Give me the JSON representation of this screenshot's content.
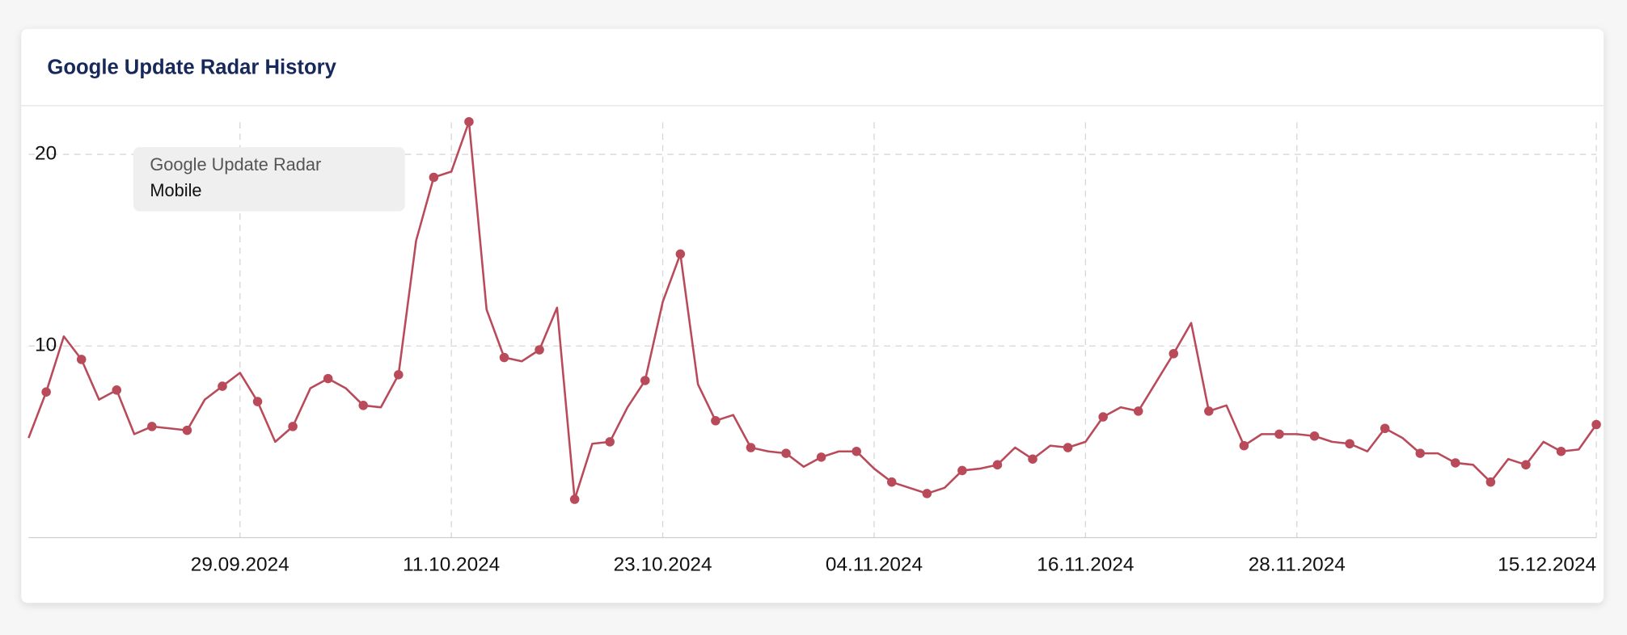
{
  "header": {
    "title": "Google Update Radar History"
  },
  "chart_data": {
    "type": "line",
    "legend_title": "Google Update Radar",
    "categories": [
      null,
      null,
      null,
      null,
      null,
      null,
      null,
      null,
      null,
      null,
      null,
      null,
      "29.09.2024",
      null,
      null,
      null,
      null,
      null,
      null,
      null,
      null,
      null,
      null,
      null,
      "11.10.2024",
      null,
      null,
      null,
      null,
      null,
      null,
      null,
      null,
      null,
      null,
      null,
      "23.10.2024",
      null,
      null,
      null,
      null,
      null,
      null,
      null,
      null,
      null,
      null,
      null,
      "04.11.2024",
      null,
      null,
      null,
      null,
      null,
      null,
      null,
      null,
      null,
      null,
      null,
      "16.11.2024",
      null,
      null,
      null,
      null,
      null,
      null,
      null,
      null,
      null,
      null,
      null,
      "28.11.2024",
      null,
      null,
      null,
      null,
      null,
      null,
      null,
      null,
      null,
      null,
      null,
      null,
      null,
      null,
      null,
      null,
      "15.12.2024"
    ],
    "series": [
      {
        "name": "Mobile",
        "color": "#b94a5a",
        "values": [
          5.2,
          7.6,
          10.5,
          9.3,
          7.2,
          7.7,
          5.4,
          5.8,
          5.7,
          5.6,
          7.2,
          7.9,
          8.6,
          7.1,
          5.0,
          5.8,
          7.8,
          8.3,
          7.8,
          6.9,
          6.8,
          8.5,
          15.5,
          18.8,
          19.1,
          21.7,
          11.9,
          9.4,
          9.2,
          9.8,
          12.0,
          2.0,
          4.9,
          5.0,
          6.8,
          8.2,
          12.3,
          14.8,
          8.0,
          6.1,
          6.4,
          4.7,
          4.5,
          4.4,
          3.7,
          4.2,
          4.5,
          4.5,
          3.6,
          2.9,
          2.6,
          2.3,
          2.6,
          3.5,
          3.6,
          3.8,
          4.7,
          4.1,
          4.8,
          4.7,
          5.0,
          6.3,
          6.8,
          6.6,
          8.1,
          9.6,
          11.2,
          6.6,
          6.9,
          4.8,
          5.4,
          5.4,
          5.4,
          5.3,
          5.0,
          4.9,
          4.5,
          5.7,
          5.2,
          4.4,
          4.4,
          3.9,
          3.8,
          2.9,
          4.1,
          3.8,
          5.0,
          4.5,
          4.6,
          5.9
        ]
      }
    ],
    "ylim": [
      0,
      22
    ],
    "yticks": [
      10,
      20
    ],
    "grid": true
  }
}
